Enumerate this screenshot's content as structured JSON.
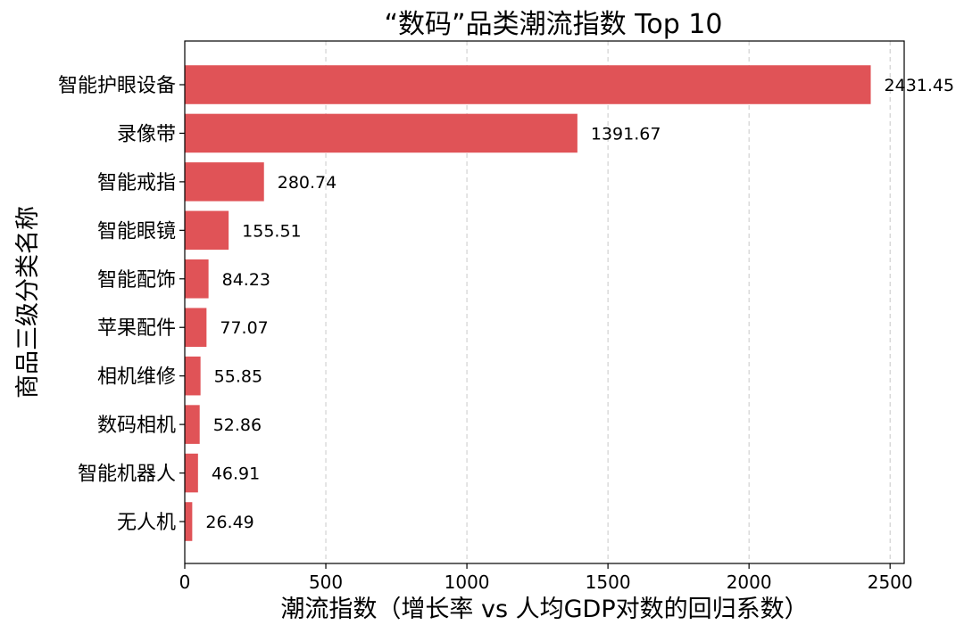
{
  "chart_data": {
    "type": "bar",
    "orientation": "horizontal",
    "title": "“数码”品类潮流指数 Top 10",
    "xlabel": "潮流指数（增长率 vs 人均GDP对数的回归系数）",
    "ylabel": "商品三级分类名称",
    "categories": [
      "智能护眼设备",
      "录像带",
      "智能戒指",
      "智能眼镜",
      "智能配饰",
      "苹果配件",
      "相机维修",
      "数码相机",
      "智能机器人",
      "无人机"
    ],
    "values": [
      2431.45,
      1391.67,
      280.74,
      155.51,
      84.23,
      77.07,
      55.85,
      52.86,
      46.91,
      26.49
    ],
    "value_labels": [
      "2431.45",
      "1391.67",
      "280.74",
      "155.51",
      "84.23",
      "77.07",
      "55.85",
      "52.86",
      "46.91",
      "26.49"
    ],
    "xlim": [
      0,
      2550
    ],
    "xticks": [
      0,
      500,
      1000,
      1500,
      2000,
      2500
    ],
    "xtick_labels": [
      "0",
      "500",
      "1000",
      "1500",
      "2000",
      "2500"
    ],
    "bar_color": "#e05357",
    "grid": "x-dashed",
    "legend": "none"
  }
}
